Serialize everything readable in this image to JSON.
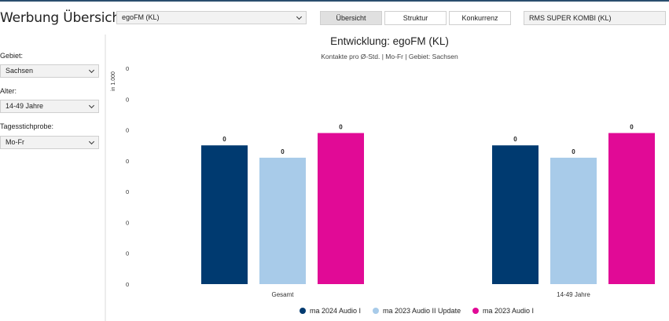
{
  "app": {
    "title": "Werbung Übersicht"
  },
  "header": {
    "station_select": "egoFM (KL)",
    "tabs": [
      {
        "label": "Übersicht",
        "active": true
      },
      {
        "label": "Struktur",
        "active": false
      },
      {
        "label": "Konkurrenz",
        "active": false
      }
    ],
    "combi_label": "RMS SUPER KOMBI (KL)"
  },
  "sidebar": {
    "filters": [
      {
        "label": "Gebiet:",
        "value": "Sachsen"
      },
      {
        "label": "Alter:",
        "value": "14-49 Jahre"
      },
      {
        "label": "Tagesstichprobe:",
        "value": "Mo-Fr"
      }
    ]
  },
  "chart_data": {
    "type": "bar",
    "title": "Entwicklung: egoFM (KL)",
    "subtitle": "Kontakte pro Ø-Std. | Mo-Fr | Gebiet: Sachsen",
    "ylabel": "in 1.000",
    "ytick_labels": [
      "0",
      "0",
      "0",
      "0",
      "0",
      "0",
      "0",
      "0"
    ],
    "ylim": [
      0,
      0.7
    ],
    "categories": [
      "Gesamt",
      "14-49 Jahre"
    ],
    "series": [
      {
        "name": "ma 2024 Audio I",
        "color": "#003a70",
        "values": [
          0.45,
          0.45
        ],
        "labels": [
          "0",
          "0"
        ]
      },
      {
        "name": "ma 2023 Audio II Update",
        "color": "#a8cbe9",
        "values": [
          0.41,
          0.41
        ],
        "labels": [
          "0",
          "0"
        ]
      },
      {
        "name": "ma 2023 Audio I",
        "color": "#e10a96",
        "values": [
          0.49,
          0.49
        ],
        "labels": [
          "0",
          "0"
        ]
      }
    ],
    "grid": false,
    "legend_position": "bottom"
  }
}
